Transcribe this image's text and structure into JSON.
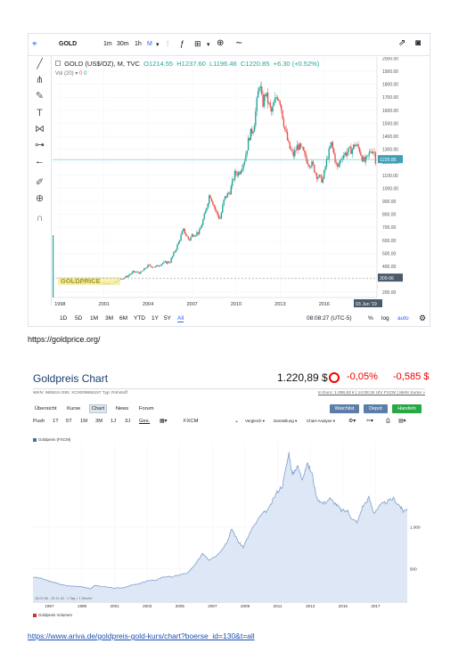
{
  "tradingview": {
    "symbol": "GOLD",
    "toolbar": {
      "intervals": [
        "1m",
        "30m",
        "1h",
        "M"
      ],
      "chart_type_icon": "candles-icon",
      "indicators_icon": "indicators-icon",
      "compare_icon": "add-compare-icon",
      "line_icon": "line-tool-icon",
      "share_icon": "share-icon",
      "snapshot_icon": "camera-icon"
    },
    "left_tools": [
      "crosshair-icon",
      "trendline-icon",
      "pitchfork-icon",
      "brush-icon",
      "text-icon",
      "pattern-icon",
      "measure-icon",
      "arrow-left-icon",
      "ruler-icon",
      "zoom-icon",
      "magnet-icon"
    ],
    "legend": {
      "title": "GOLD (US$/OZ), M, TVC",
      "o": "O1214.55",
      "h": "H1237.60",
      "l": "L1196.46",
      "c": "C1220.85",
      "change": "+6.30 (+0.52%)"
    },
    "volume_label": "Vol (20)",
    "volume_values": [
      "0",
      "0"
    ],
    "watermark": "GOLDPRICE",
    "last_price_label": "1220.85",
    "last_price_label_2": "309.66",
    "date_badge": "03 Jun '19",
    "bottom_bar": {
      "ranges": [
        "1D",
        "5D",
        "1M",
        "3M",
        "6M",
        "YTD",
        "1Y",
        "5Y",
        "All"
      ],
      "active_range": "All",
      "time": "08:08:27 (UTC-5)",
      "percent": "%",
      "log": "log",
      "auto": "auto"
    },
    "colors": {
      "up": "#26a69a",
      "down": "#ef5350",
      "active": "#2962ff",
      "price_line": "#5fc3c9"
    }
  },
  "tv_chart_data": {
    "type": "candlestick",
    "title": "GOLD (US$/OZ), M, TVC",
    "x_ticks": [
      "1998",
      "2001",
      "2004",
      "2007",
      "2010",
      "2013",
      "2016"
    ],
    "x_range": [
      1997.5,
      2019.6
    ],
    "y_ticks": [
      200,
      300,
      400,
      500,
      600,
      700,
      800,
      900,
      1000,
      1100,
      1200,
      1300,
      1400,
      1500,
      1600,
      1700,
      1800,
      1900,
      2000
    ],
    "ylim": [
      160,
      2010
    ],
    "series_close": [
      [
        1998.0,
        295
      ],
      [
        1998.5,
        290
      ],
      [
        1999.0,
        286
      ],
      [
        1999.5,
        262
      ],
      [
        1999.8,
        300
      ],
      [
        2000.0,
        285
      ],
      [
        2000.5,
        282
      ],
      [
        2001.0,
        266
      ],
      [
        2001.5,
        268
      ],
      [
        2002.0,
        296
      ],
      [
        2002.5,
        318
      ],
      [
        2003.0,
        356
      ],
      [
        2003.5,
        350
      ],
      [
        2004.0,
        405
      ],
      [
        2004.5,
        395
      ],
      [
        2005.0,
        425
      ],
      [
        2005.5,
        435
      ],
      [
        2006.0,
        560
      ],
      [
        2006.4,
        680
      ],
      [
        2006.8,
        600
      ],
      [
        2007.0,
        640
      ],
      [
        2007.5,
        665
      ],
      [
        2007.9,
        810
      ],
      [
        2008.2,
        960
      ],
      [
        2008.6,
        830
      ],
      [
        2008.9,
        760
      ],
      [
        2009.2,
        920
      ],
      [
        2009.6,
        980
      ],
      [
        2009.9,
        1110
      ],
      [
        2010.2,
        1120
      ],
      [
        2010.6,
        1230
      ],
      [
        2010.9,
        1400
      ],
      [
        2011.2,
        1470
      ],
      [
        2011.6,
        1820
      ],
      [
        2011.8,
        1640
      ],
      [
        2012.0,
        1730
      ],
      [
        2012.4,
        1580
      ],
      [
        2012.8,
        1720
      ],
      [
        2013.0,
        1670
      ],
      [
        2013.3,
        1470
      ],
      [
        2013.6,
        1320
      ],
      [
        2013.9,
        1250
      ],
      [
        2014.2,
        1330
      ],
      [
        2014.5,
        1290
      ],
      [
        2014.9,
        1200
      ],
      [
        2015.2,
        1180
      ],
      [
        2015.5,
        1100
      ],
      [
        2015.9,
        1060
      ],
      [
        2016.2,
        1230
      ],
      [
        2016.5,
        1340
      ],
      [
        2016.9,
        1150
      ],
      [
        2017.2,
        1250
      ],
      [
        2017.6,
        1280
      ],
      [
        2017.9,
        1300
      ],
      [
        2018.1,
        1340
      ],
      [
        2018.4,
        1300
      ],
      [
        2018.7,
        1200
      ],
      [
        2018.9,
        1220
      ],
      [
        2019.2,
        1300
      ],
      [
        2019.4,
        1285
      ],
      [
        2019.5,
        1220
      ]
    ],
    "last_price": 1220.85
  },
  "tv_caption": "https://goldprice.org/",
  "ariva": {
    "title": "Goldpreis Chart",
    "price": "1.220,89 $",
    "change_pct": "-0,05%",
    "change_abs": "-0,585 $",
    "meta_left": "WKN: 965515   ISIN: XC0009655157   Typ: Rohstoff",
    "meta_right": "In Euro: 1.088,93 € | 14:08:19 Uhr FXCM | Mehr Kurse »",
    "nav": [
      "Übersicht",
      "Kurse",
      "Chart",
      "News",
      "Forum"
    ],
    "nav_active": "Chart",
    "buttons": {
      "watchlist": "Watchlist",
      "depot": "Depot",
      "handeln": "Handeln"
    },
    "timeframes": [
      "Push",
      "1T",
      "5T",
      "1M",
      "3M",
      "1J",
      "3J",
      "Ges."
    ],
    "timeframe_active": "Ges.",
    "source": "FXCM",
    "dropdowns": [
      "Vergleich ▾",
      "Darstellung ▾",
      "Chart-Analyse ▾"
    ],
    "legend_price": "Goldpreis (FXCM)",
    "legend_volume": "Goldpreis Volumen",
    "range_note": "18.01.96 - 19.11.18 · 1 Tag = 1 Woche",
    "colors": {
      "line": "#7f9fd0",
      "area": "#dde7f5",
      "brand": "#1a3e6e",
      "negative": "#e00000",
      "btn_blue": "#5b7da8",
      "btn_green": "#27a844"
    }
  },
  "ariva_chart_data": {
    "type": "area",
    "x_ticks": [
      "1997",
      "1999",
      "2001",
      "2003",
      "2005",
      "2007",
      "2009",
      "2011",
      "2013",
      "2015",
      "2017"
    ],
    "x_range": [
      1996.0,
      2018.95
    ],
    "y_ticks": [
      {
        "value": 500,
        "label": "500"
      },
      {
        "value": 1000,
        "label": "1.000"
      }
    ],
    "ylim": [
      100,
      2000
    ],
    "series": [
      [
        1996.0,
        400
      ],
      [
        1996.5,
        385
      ],
      [
        1997.0,
        350
      ],
      [
        1997.5,
        325
      ],
      [
        1998.0,
        298
      ],
      [
        1998.5,
        290
      ],
      [
        1999.0,
        288
      ],
      [
        1999.5,
        258
      ],
      [
        1999.8,
        300
      ],
      [
        2000.5,
        280
      ],
      [
        2001.0,
        265
      ],
      [
        2001.5,
        272
      ],
      [
        2002.0,
        300
      ],
      [
        2002.5,
        318
      ],
      [
        2003.0,
        355
      ],
      [
        2003.5,
        360
      ],
      [
        2004.0,
        405
      ],
      [
        2004.5,
        400
      ],
      [
        2005.0,
        428
      ],
      [
        2005.5,
        450
      ],
      [
        2006.0,
        560
      ],
      [
        2006.4,
        690
      ],
      [
        2006.8,
        610
      ],
      [
        2007.3,
        665
      ],
      [
        2007.9,
        820
      ],
      [
        2008.2,
        980
      ],
      [
        2008.6,
        820
      ],
      [
        2008.9,
        760
      ],
      [
        2009.3,
        930
      ],
      [
        2009.9,
        1120
      ],
      [
        2010.5,
        1230
      ],
      [
        2010.9,
        1400
      ],
      [
        2011.3,
        1500
      ],
      [
        2011.7,
        1890
      ],
      [
        2011.9,
        1620
      ],
      [
        2012.2,
        1740
      ],
      [
        2012.5,
        1580
      ],
      [
        2012.8,
        1760
      ],
      [
        2013.1,
        1650
      ],
      [
        2013.4,
        1350
      ],
      [
        2013.8,
        1280
      ],
      [
        2014.2,
        1340
      ],
      [
        2014.6,
        1270
      ],
      [
        2014.9,
        1200
      ],
      [
        2015.3,
        1190
      ],
      [
        2015.6,
        1090
      ],
      [
        2015.9,
        1060
      ],
      [
        2016.2,
        1240
      ],
      [
        2016.6,
        1350
      ],
      [
        2016.9,
        1170
      ],
      [
        2017.3,
        1260
      ],
      [
        2017.7,
        1300
      ],
      [
        2018.1,
        1340
      ],
      [
        2018.5,
        1250
      ],
      [
        2018.7,
        1190
      ],
      [
        2018.95,
        1220
      ]
    ]
  },
  "ariva_caption": "https://www.ariva.de/goldpreis-gold-kurs/chart?boerse_id=130&t=all"
}
